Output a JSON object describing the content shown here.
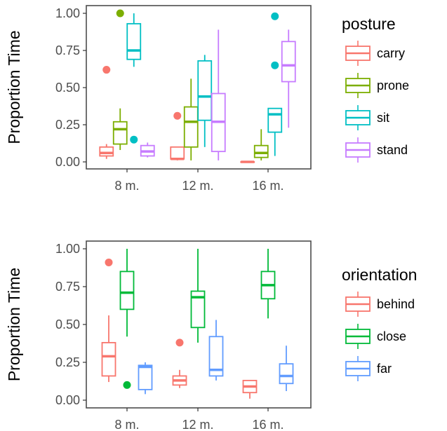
{
  "chart_data": [
    {
      "type": "boxplot",
      "ylabel": "Proportion Time",
      "categories": [
        "8 m.",
        "12 m.",
        "16 m."
      ],
      "yticks": [
        "0.00",
        "0.25",
        "0.50",
        "0.75",
        "1.00"
      ],
      "ylim": [
        0,
        1
      ],
      "legend_title": "posture",
      "legend_position": "right",
      "series": [
        {
          "name": "carry",
          "color": "#F8766D",
          "boxes": [
            {
              "min": 0.02,
              "q1": 0.04,
              "median": 0.06,
              "q3": 0.1,
              "max": 0.12,
              "outliers": [
                0.62
              ]
            },
            {
              "min": 0.01,
              "q1": 0.02,
              "median": 0.02,
              "q3": 0.1,
              "max": 0.1,
              "outliers": [
                0.31
              ]
            },
            {
              "min": 0.0,
              "q1": 0.0,
              "median": 0.0,
              "q3": 0.0,
              "max": 0.0,
              "outliers": []
            }
          ]
        },
        {
          "name": "prone",
          "color": "#7CAE00",
          "boxes": [
            {
              "min": 0.08,
              "q1": 0.12,
              "median": 0.22,
              "q3": 0.27,
              "max": 0.36,
              "outliers": [
                1.0
              ]
            },
            {
              "min": 0.01,
              "q1": 0.1,
              "median": 0.27,
              "q3": 0.37,
              "max": 0.56,
              "outliers": []
            },
            {
              "min": 0.01,
              "q1": 0.03,
              "median": 0.06,
              "q3": 0.11,
              "max": 0.22,
              "outliers": []
            }
          ]
        },
        {
          "name": "sit",
          "color": "#00BFC4",
          "boxes": [
            {
              "min": 0.64,
              "q1": 0.69,
              "median": 0.75,
              "q3": 0.93,
              "max": 1.0,
              "outliers": [
                0.15
              ]
            },
            {
              "min": 0.1,
              "q1": 0.28,
              "median": 0.44,
              "q3": 0.68,
              "max": 0.72,
              "outliers": []
            },
            {
              "min": 0.04,
              "q1": 0.2,
              "median": 0.32,
              "q3": 0.36,
              "max": 0.36,
              "outliers": [
                0.98,
                0.65
              ]
            }
          ]
        },
        {
          "name": "stand",
          "color": "#C77CFF",
          "boxes": [
            {
              "min": 0.03,
              "q1": 0.04,
              "median": 0.07,
              "q3": 0.11,
              "max": 0.13,
              "outliers": []
            },
            {
              "min": 0.01,
              "q1": 0.07,
              "median": 0.27,
              "q3": 0.46,
              "max": 0.89,
              "outliers": []
            },
            {
              "min": 0.23,
              "q1": 0.54,
              "median": 0.65,
              "q3": 0.81,
              "max": 0.89,
              "outliers": []
            }
          ]
        }
      ]
    },
    {
      "type": "boxplot",
      "ylabel": "Proportion Time",
      "categories": [
        "8 m.",
        "12 m.",
        "16 m."
      ],
      "yticks": [
        "0.00",
        "0.25",
        "0.50",
        "0.75",
        "1.00"
      ],
      "ylim": [
        0,
        1
      ],
      "legend_title": "orientation",
      "legend_position": "right",
      "series": [
        {
          "name": "behind",
          "color": "#F8766D",
          "boxes": [
            {
              "min": 0.12,
              "q1": 0.16,
              "median": 0.29,
              "q3": 0.38,
              "max": 0.56,
              "outliers": [
                0.91
              ]
            },
            {
              "min": 0.08,
              "q1": 0.1,
              "median": 0.13,
              "q3": 0.16,
              "max": 0.2,
              "outliers": [
                0.38
              ]
            },
            {
              "min": 0.01,
              "q1": 0.05,
              "median": 0.09,
              "q3": 0.13,
              "max": 0.13,
              "outliers": []
            }
          ]
        },
        {
          "name": "close",
          "color": "#00BA38",
          "boxes": [
            {
              "min": 0.42,
              "q1": 0.6,
              "median": 0.71,
              "q3": 0.85,
              "max": 1.0,
              "outliers": [
                0.1
              ]
            },
            {
              "min": 0.38,
              "q1": 0.48,
              "median": 0.68,
              "q3": 0.72,
              "max": 1.0,
              "outliers": []
            },
            {
              "min": 0.54,
              "q1": 0.67,
              "median": 0.76,
              "q3": 0.85,
              "max": 1.0,
              "outliers": []
            }
          ]
        },
        {
          "name": "far",
          "color": "#619CFF",
          "boxes": [
            {
              "min": 0.04,
              "q1": 0.07,
              "median": 0.22,
              "q3": 0.23,
              "max": 0.25,
              "outliers": []
            },
            {
              "min": 0.13,
              "q1": 0.16,
              "median": 0.2,
              "q3": 0.42,
              "max": 0.53,
              "outliers": []
            },
            {
              "min": 0.06,
              "q1": 0.11,
              "median": 0.16,
              "q3": 0.24,
              "max": 0.36,
              "outliers": []
            }
          ]
        }
      ]
    }
  ]
}
